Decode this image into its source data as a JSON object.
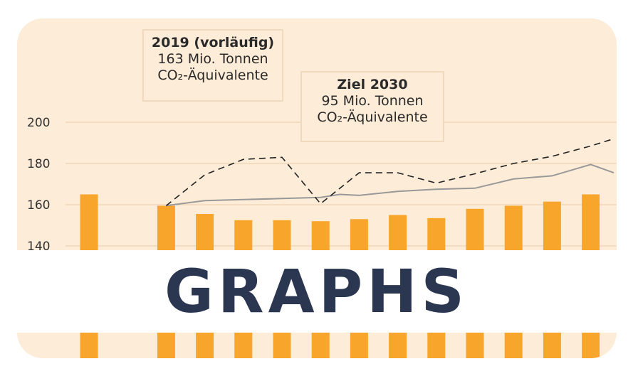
{
  "banner": {
    "text": "GRAPHS"
  },
  "annotations": {
    "current": {
      "title": "2019 (vorläufig)",
      "line1": "163 Mio. Tonnen",
      "line2": "CO₂-Äquivalente"
    },
    "target": {
      "title": "Ziel 2030",
      "line1": "95 Mio. Tonnen",
      "line2": "CO₂-Äquivalente"
    }
  },
  "colors": {
    "bar": "#f7a62b",
    "background": "#fdecd7",
    "banner_text": "#2b3650",
    "gridline": "#f3dcc0",
    "line": "#999999",
    "dash": "#222222"
  },
  "chart_data": {
    "type": "bar",
    "ylim": [
      130,
      200
    ],
    "yticks": [
      140,
      160,
      180,
      200
    ],
    "grid": true,
    "bars": [
      {
        "x": 0,
        "value": 165
      },
      {
        "x": 2,
        "value": 159.5
      },
      {
        "x": 3,
        "value": 155.5
      },
      {
        "x": 4,
        "value": 152.5
      },
      {
        "x": 5,
        "value": 152.5
      },
      {
        "x": 6,
        "value": 152
      },
      {
        "x": 7,
        "value": 153
      },
      {
        "x": 8,
        "value": 155
      },
      {
        "x": 9,
        "value": 153.5
      },
      {
        "x": 10,
        "value": 158
      },
      {
        "x": 11,
        "value": 159.5
      },
      {
        "x": 12,
        "value": 161.5
      },
      {
        "x": 13,
        "value": 165
      }
    ],
    "series": [
      {
        "style": "solid",
        "points": [
          [
            2,
            159.5
          ],
          [
            3,
            162
          ],
          [
            4,
            162.5
          ],
          [
            5,
            163
          ],
          [
            6,
            163.5
          ],
          [
            6.5,
            165
          ],
          [
            7,
            164.5
          ],
          [
            8,
            166.5
          ],
          [
            9,
            167.5
          ],
          [
            10,
            168
          ],
          [
            11,
            172.5
          ],
          [
            12,
            174
          ],
          [
            13,
            179.5
          ],
          [
            13.6,
            175.5
          ]
        ]
      },
      {
        "style": "dashed",
        "points": [
          [
            2,
            159.5
          ],
          [
            3,
            174.5
          ],
          [
            4,
            182
          ],
          [
            5,
            183
          ],
          [
            6,
            160.5
          ],
          [
            7,
            175.5
          ],
          [
            8,
            175.5
          ],
          [
            9,
            170.5
          ],
          [
            10,
            175
          ],
          [
            11,
            180
          ],
          [
            12,
            183.5
          ],
          [
            13,
            188.5
          ],
          [
            13.6,
            192
          ]
        ]
      }
    ]
  }
}
